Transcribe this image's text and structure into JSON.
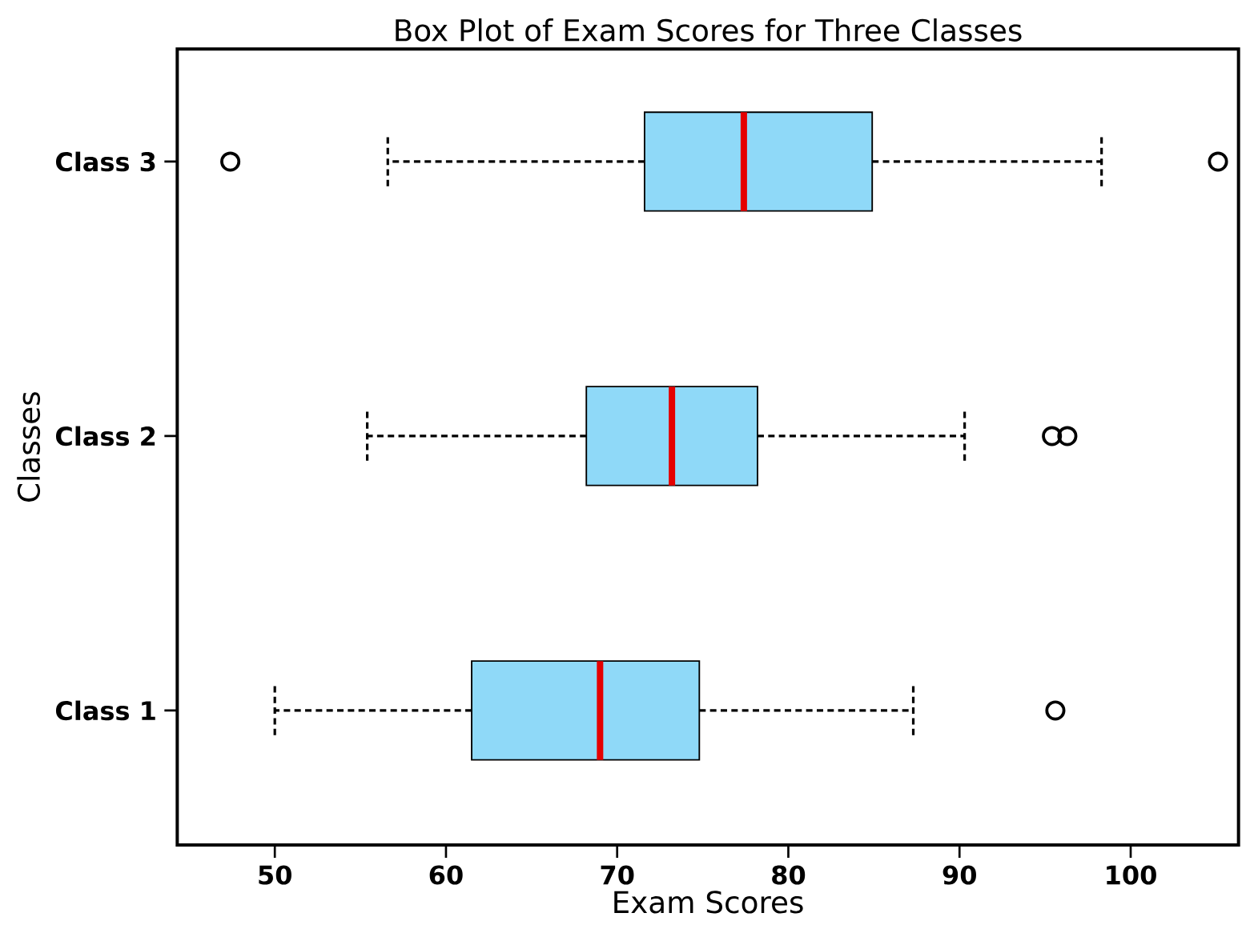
{
  "chart_data": {
    "type": "box",
    "title": "Box Plot of Exam Scores for Three Classes",
    "xlabel": "Exam Scores",
    "ylabel": "Classes",
    "orientation": "horizontal",
    "color": "#8fd9f8",
    "categories": [
      "Class 3",
      "Class 2",
      "Class 1"
    ],
    "boxes": [
      {
        "low": 56.6,
        "q1": 71.6,
        "median": 77.4,
        "q3": 84.9,
        "high": 98.3,
        "outliers": [
          47.4,
          105.1
        ]
      },
      {
        "low": 55.4,
        "q1": 68.2,
        "median": 73.2,
        "q3": 78.2,
        "high": 90.3,
        "outliers": [
          95.4,
          96.3
        ]
      },
      {
        "low": 50.0,
        "q1": 61.5,
        "median": 69.0,
        "q3": 74.8,
        "high": 87.3,
        "outliers": [
          95.6
        ]
      }
    ],
    "xlim": [
      44.3,
      106.3
    ],
    "xticks": [
      50,
      60,
      70,
      80,
      90,
      100
    ]
  }
}
